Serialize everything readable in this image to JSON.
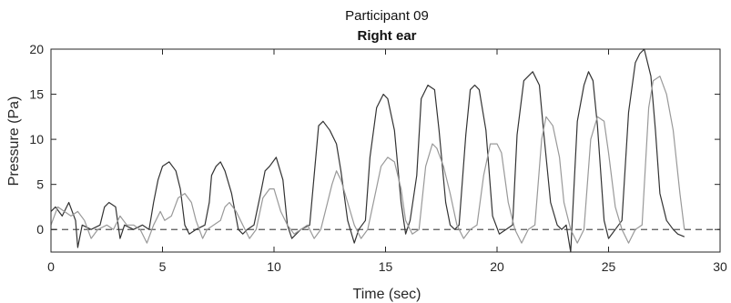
{
  "chart_data": {
    "type": "line",
    "title": "Participant 09",
    "subtitle": "Right ear",
    "xlabel": "Time (sec)",
    "ylabel": "Pressure (Pa)",
    "xlim": [
      0,
      30
    ],
    "ylim": [
      -2.5,
      20
    ],
    "xticks": [
      "0",
      "5",
      "10",
      "15",
      "20",
      "25",
      "30"
    ],
    "yticks": [
      "0",
      "5",
      "10",
      "15",
      "20"
    ],
    "grid": false,
    "reference_line": {
      "y": 0,
      "style": "dashed"
    },
    "series": [
      {
        "color": "#333333",
        "x": [
          0,
          0.2,
          0.5,
          0.8,
          1.1,
          1.2,
          1.4,
          1.8,
          2.2,
          2.4,
          2.6,
          2.9,
          3.1,
          3.3,
          3.7,
          4.1,
          4.4,
          4.6,
          4.8,
          5.0,
          5.3,
          5.6,
          5.8,
          6.0,
          6.2,
          6.5,
          6.9,
          7.1,
          7.2,
          7.4,
          7.6,
          7.8,
          8.1,
          8.4,
          8.6,
          8.8,
          9.1,
          9.4,
          9.6,
          9.8,
          10.1,
          10.4,
          10.6,
          10.8,
          11.2,
          11.6,
          11.8,
          12.0,
          12.2,
          12.5,
          12.8,
          13.0,
          13.3,
          13.6,
          13.8,
          14.1,
          14.3,
          14.6,
          14.9,
          15.1,
          15.4,
          15.7,
          15.9,
          16.1,
          16.4,
          16.6,
          16.9,
          17.2,
          17.4,
          17.7,
          17.9,
          18.1,
          18.3,
          18.6,
          18.8,
          19.0,
          19.2,
          19.5,
          19.8,
          20.1,
          20.4,
          20.7,
          20.9,
          21.2,
          21.6,
          21.9,
          22.1,
          22.4,
          22.7,
          22.9,
          23.1,
          23.3,
          23.6,
          23.9,
          24.1,
          24.3,
          24.5,
          24.8,
          25.0,
          25.3,
          25.6,
          25.9,
          26.2,
          26.4,
          26.6,
          26.9,
          27.1,
          27.3,
          27.6,
          27.9,
          28.1,
          28.4
        ],
        "y": [
          2.0,
          2.5,
          1.5,
          3.0,
          1.0,
          -2.0,
          0.5,
          0.0,
          0.5,
          2.5,
          3.0,
          2.5,
          -1.0,
          0.5,
          0.0,
          0.5,
          0.0,
          3.0,
          5.5,
          7.0,
          7.5,
          6.5,
          4.5,
          0.5,
          -0.5,
          0.0,
          0.5,
          3.0,
          6.0,
          7.0,
          7.5,
          6.5,
          4.0,
          0.0,
          -0.5,
          0.0,
          0.5,
          4.0,
          6.5,
          7.0,
          8.0,
          5.5,
          0.5,
          -1.0,
          0.0,
          0.5,
          6.0,
          11.5,
          12.0,
          11.0,
          9.5,
          6.5,
          1.0,
          -1.5,
          0.0,
          1.0,
          8.0,
          13.5,
          15.0,
          14.5,
          11.0,
          3.0,
          -0.5,
          1.0,
          6.0,
          14.5,
          16.0,
          15.5,
          11.0,
          3.0,
          0.5,
          0.0,
          0.5,
          10.5,
          15.5,
          16.0,
          15.5,
          11.0,
          1.5,
          -0.5,
          0.0,
          0.5,
          10.5,
          16.5,
          17.5,
          16.0,
          10.5,
          3.0,
          0.5,
          0.0,
          0.5,
          -2.5,
          12.0,
          16.0,
          17.5,
          16.5,
          11.5,
          1.0,
          -1.0,
          0.0,
          1.0,
          13.0,
          18.5,
          19.5,
          20.0,
          17.0,
          11.0,
          4.0,
          1.0,
          0.0,
          -0.5,
          -0.8
        ]
      },
      {
        "color": "#999999",
        "x": [
          0,
          0.3,
          0.6,
          0.9,
          1.2,
          1.5,
          1.8,
          2.1,
          2.5,
          2.8,
          3.1,
          3.4,
          3.7,
          4.0,
          4.3,
          4.6,
          4.9,
          5.1,
          5.4,
          5.7,
          6.0,
          6.3,
          6.5,
          6.8,
          7.0,
          7.3,
          7.6,
          7.8,
          8.0,
          8.3,
          8.6,
          8.9,
          9.2,
          9.5,
          9.8,
          10.0,
          10.3,
          10.6,
          10.9,
          11.2,
          11.5,
          11.8,
          12.1,
          12.4,
          12.6,
          12.8,
          13.0,
          13.3,
          13.6,
          13.9,
          14.2,
          14.5,
          14.8,
          15.1,
          15.4,
          15.7,
          15.9,
          16.2,
          16.5,
          16.8,
          17.1,
          17.3,
          17.6,
          17.9,
          18.2,
          18.5,
          18.8,
          19.1,
          19.4,
          19.7,
          20.0,
          20.2,
          20.5,
          20.8,
          21.1,
          21.4,
          21.7,
          22.0,
          22.2,
          22.5,
          22.8,
          23.0,
          23.3,
          23.6,
          23.9,
          24.2,
          24.5,
          24.8,
          25.0,
          25.3,
          25.6,
          25.9,
          26.2,
          26.5,
          26.8,
          27.0,
          27.3,
          27.6,
          27.9,
          28.2,
          28.4
        ],
        "y": [
          0.5,
          2.5,
          2.0,
          1.5,
          2.0,
          1.0,
          -1.0,
          0.0,
          0.5,
          0.0,
          1.5,
          0.5,
          0.5,
          0.0,
          -1.5,
          0.5,
          2.0,
          1.0,
          1.5,
          3.5,
          4.0,
          3.0,
          1.0,
          -1.0,
          0.0,
          0.5,
          1.0,
          2.5,
          3.0,
          2.0,
          0.5,
          -1.0,
          0.0,
          3.5,
          4.5,
          4.5,
          2.0,
          0.5,
          -0.5,
          0.0,
          0.5,
          -1.0,
          0.0,
          3.0,
          5.0,
          6.5,
          5.5,
          3.0,
          0.5,
          -1.0,
          0.0,
          3.5,
          7.0,
          8.0,
          7.5,
          4.5,
          1.0,
          -0.5,
          0.0,
          7.0,
          9.5,
          9.0,
          7.0,
          4.0,
          0.5,
          -1.0,
          0.0,
          0.5,
          6.0,
          9.5,
          9.5,
          8.5,
          3.0,
          0.0,
          -1.5,
          0.0,
          0.5,
          10.0,
          12.5,
          11.5,
          8.0,
          3.0,
          0.0,
          -1.5,
          0.0,
          10.0,
          12.5,
          12.0,
          8.5,
          2.5,
          0.0,
          -1.5,
          0.0,
          0.5,
          13.5,
          16.5,
          17.0,
          15.0,
          11.0,
          4.0,
          0.0
        ]
      }
    ]
  }
}
